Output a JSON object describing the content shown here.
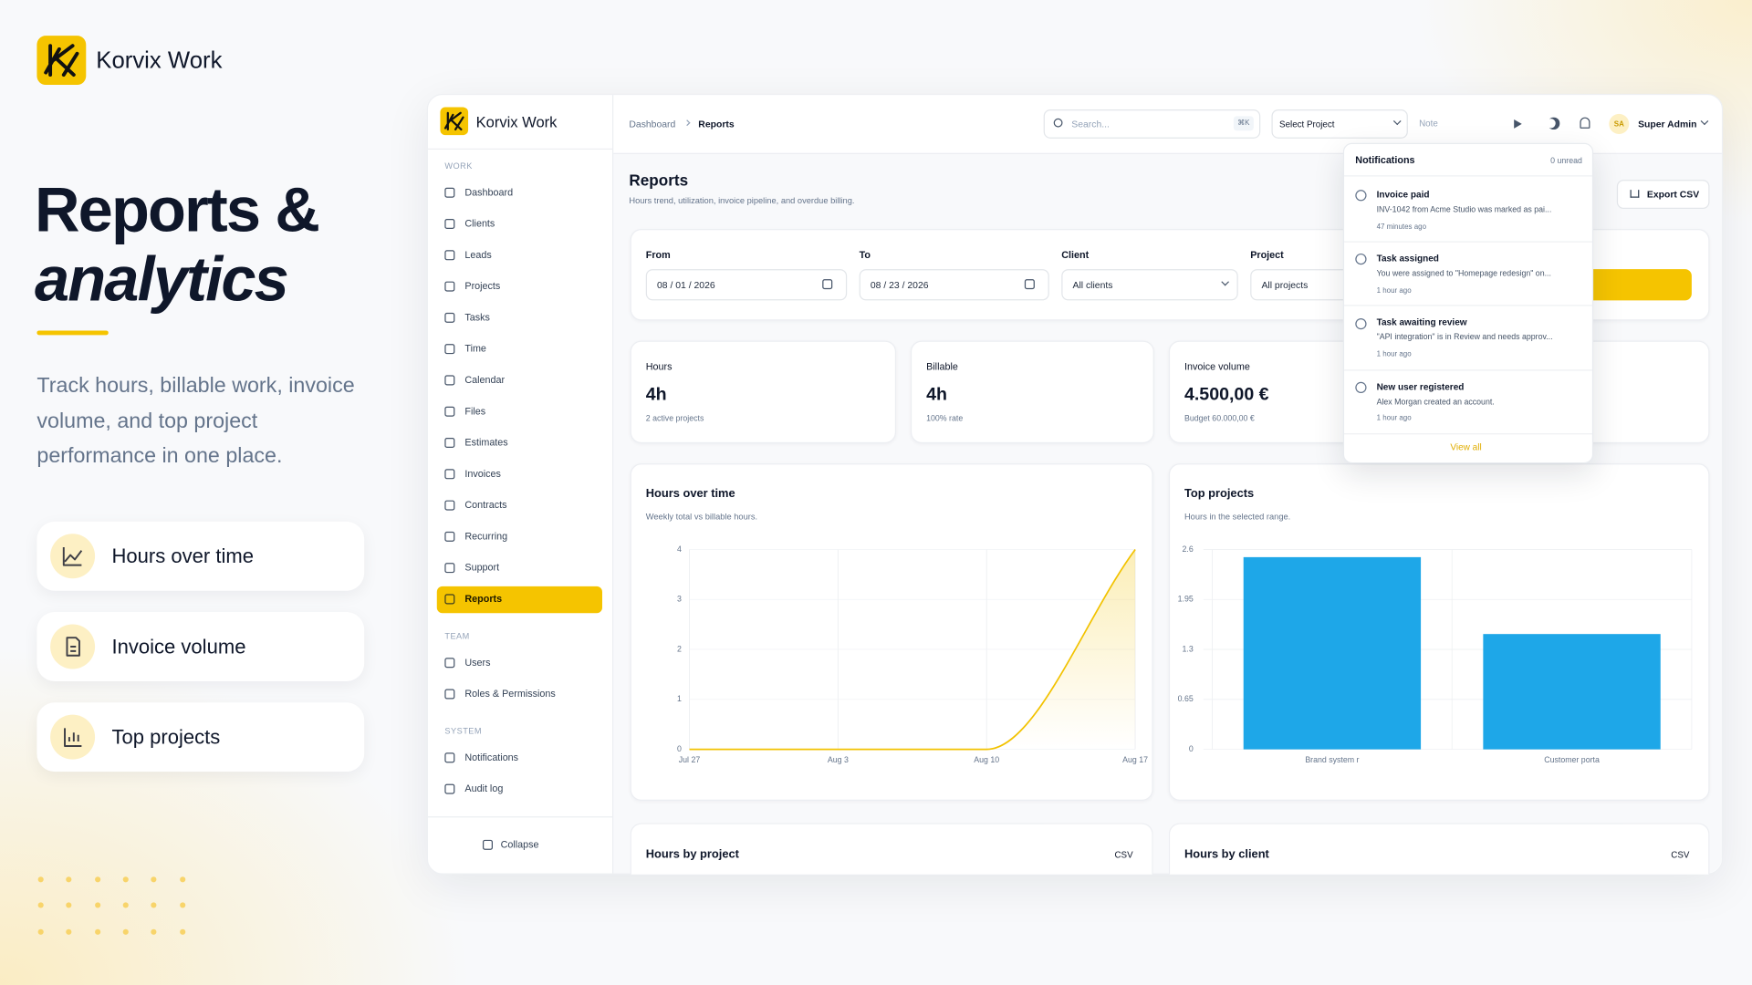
{
  "hero": {
    "brand": "Korvix Work",
    "title_line1": "Reports &",
    "title_line2": "analytics",
    "description": "Track hours, billable work, invoice volume, and top project performance in one place.",
    "features": [
      "Hours over time",
      "Invoice volume",
      "Top projects"
    ]
  },
  "app": {
    "sidebar": {
      "brand": "Korvix Work",
      "sections": [
        {
          "label": "WORK",
          "items": [
            "Dashboard",
            "Clients",
            "Leads",
            "Projects",
            "Tasks",
            "Time",
            "Calendar",
            "Files",
            "Estimates",
            "Invoices",
            "Contracts",
            "Recurring",
            "Support",
            "Reports"
          ],
          "active_index": 13
        },
        {
          "label": "TEAM",
          "items": [
            "Users",
            "Roles & Permissions"
          ]
        },
        {
          "label": "SYSTEM",
          "items": [
            "Notifications",
            "Audit log"
          ]
        }
      ],
      "collapse": "Collapse"
    },
    "topbar": {
      "breadcrumb": [
        "Dashboard",
        "Reports"
      ],
      "search_placeholder": "Search...",
      "shortcut": "⌘K",
      "project_select": "Select Project",
      "note": "Note",
      "avatar": "SA",
      "user": "Super Admin"
    },
    "page": {
      "title": "Reports",
      "subtitle": "Hours trend, utilization, invoice pipeline, and overdue billing.",
      "export": "Export CSV",
      "filters": [
        {
          "label": "From",
          "value": "08 / 01 / 2026"
        },
        {
          "label": "To",
          "value": "08 / 23 / 2026"
        },
        {
          "label": "Client",
          "value": "All clients"
        },
        {
          "label": "Project",
          "value": "All projects"
        }
      ],
      "stats": [
        {
          "label": "Hours",
          "value": "4h",
          "note": "2 active projects"
        },
        {
          "label": "Billable",
          "value": "4h",
          "note": "100% rate"
        },
        {
          "label": "Invoice volume",
          "value": "4.500,00 €",
          "note": "Budget 60.000,00 €"
        }
      ],
      "hours_chart": {
        "type": "line",
        "title": "Hours over time",
        "subtitle": "Weekly total vs billable hours.",
        "categories": [
          "Jul 27",
          "Aug 3",
          "Aug 10",
          "Aug 17"
        ],
        "values": [
          0,
          0,
          0,
          4
        ],
        "color": "#f2c200",
        "ylim": [
          0,
          4
        ],
        "yticks": [
          0,
          1,
          2,
          3,
          4
        ]
      },
      "top_projects": {
        "type": "bar",
        "title": "Top projects",
        "subtitle": "Hours in the selected range.",
        "categories": [
          "Brand system r",
          "Customer porta"
        ],
        "values": [
          2.5,
          1.5
        ],
        "color": "#1ea7e8",
        "ylim": [
          0,
          2.6
        ],
        "yticks": [
          0,
          0.65,
          1.3,
          1.95,
          2.6
        ]
      },
      "bottom_cards": [
        {
          "title": "Hours by project",
          "action": "CSV"
        },
        {
          "title": "Hours by client",
          "action": "CSV"
        }
      ]
    },
    "notifications": {
      "title": "Notifications",
      "count": "0 unread",
      "items": [
        {
          "title": "Invoice paid",
          "body": "INV-1042 from Acme Studio was marked as pai...",
          "time": "47 minutes ago"
        },
        {
          "title": "Task assigned",
          "body": "You were assigned to \"Homepage redesign\" on...",
          "time": "1 hour ago"
        },
        {
          "title": "Task awaiting review",
          "body": "\"API integration\" is in Review and needs approv...",
          "time": "1 hour ago"
        },
        {
          "title": "New user registered",
          "body": "Alex Morgan created an account.",
          "time": "1 hour ago"
        }
      ],
      "view_all": "View all"
    }
  }
}
